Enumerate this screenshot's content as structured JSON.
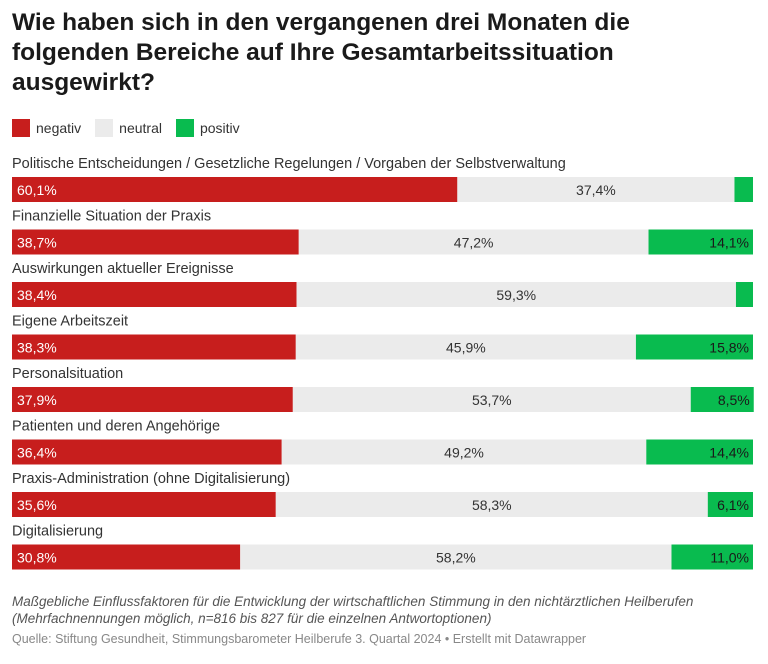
{
  "title": "Wie haben sich in den vergangenen drei Monaten die folgenden Bereiche auf Ihre Gesamtarbeitssituation ausgewirkt?",
  "footnote": "Maßgebliche Einflussfaktoren für die Entwicklung der wirtschaftlichen Stimmung in den nichtärztlichen Heilberufen (Mehrfachnennungen möglich, n=816 bis 827 für die einzelnen Antwortoptionen)",
  "source": "Quelle: Stiftung Gesundheit, Stimmungsbarometer Heilberufe 3. Quartal 2024 • Erstellt mit Datawrapper",
  "colors": {
    "negativ": "#c71e1d",
    "neutral": "#ebebeb",
    "positiv": "#09bb4f"
  },
  "chart_data": {
    "type": "bar",
    "stacked": true,
    "orientation": "horizontal",
    "xlim": [
      0,
      100
    ],
    "legend_position": "top-left",
    "categories": [
      "Politische Entscheidungen / Gesetzliche Regelungen / Vorgaben der Selbstverwaltung",
      "Finanzielle Situation der Praxis",
      "Auswirkungen aktueller Ereignisse",
      "Eigene Arbeitszeit",
      "Personalsituation",
      "Patienten und deren Angehörige",
      "Praxis-Administration (ohne Digitalisierung)",
      "Digitalisierung"
    ],
    "series": [
      {
        "name": "negativ",
        "values": [
          60.1,
          38.7,
          38.4,
          38.3,
          37.9,
          36.4,
          35.6,
          30.8
        ],
        "labels": [
          "60,1%",
          "38,7%",
          "38,4%",
          "38,3%",
          "37,9%",
          "36,4%",
          "35,6%",
          "30,8%"
        ]
      },
      {
        "name": "neutral",
        "values": [
          37.4,
          47.2,
          59.3,
          45.9,
          53.7,
          49.2,
          58.3,
          58.2
        ],
        "labels": [
          "37,4%",
          "47,2%",
          "59,3%",
          "45,9%",
          "53,7%",
          "49,2%",
          "58,3%",
          "58,2%"
        ]
      },
      {
        "name": "positiv",
        "values": [
          2.5,
          14.1,
          2.3,
          15.8,
          8.5,
          14.4,
          6.1,
          11.0
        ],
        "labels": [
          "",
          "14,1%",
          "",
          "15,8%",
          "8,5%",
          "14,4%",
          "6,1%",
          "11,0%"
        ]
      }
    ]
  }
}
